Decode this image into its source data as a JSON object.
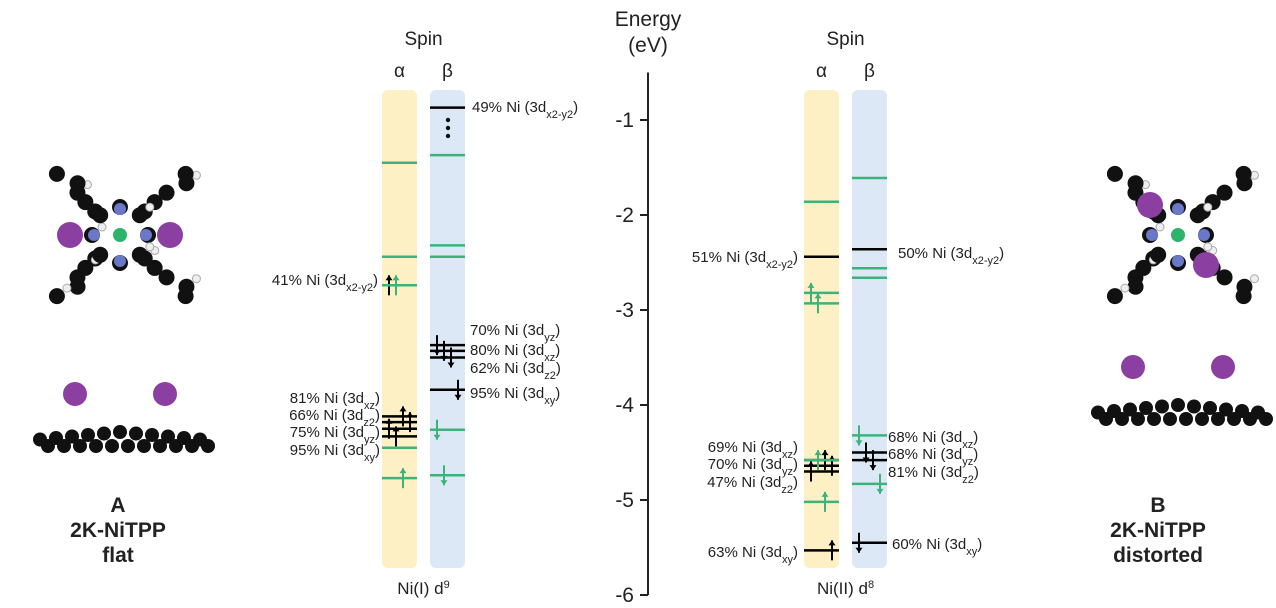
{
  "axis": {
    "title": [
      "Energy",
      "(eV)"
    ],
    "ylim": [
      -6,
      -0.5
    ],
    "yticks": [
      -1,
      -2,
      -3,
      -4,
      -5,
      -6
    ]
  },
  "panels": [
    {
      "header": "Spin",
      "alpha": "α",
      "beta": "β",
      "footer": {
        "text": "Ni(I) d",
        "sup": "9"
      },
      "columns": [
        {
          "color": "#fdf0c4",
          "levels": [
            {
              "energy": -1.45,
              "color": "#3cb37a",
              "e": "none"
            },
            {
              "energy": -2.44,
              "color": "#3cb37a",
              "e": "none"
            },
            {
              "energy": -2.74,
              "color": "#000000",
              "e": "up"
            },
            {
              "energy": -2.74,
              "color": "#3cb37a",
              "e": "up"
            },
            {
              "energy": -4.12,
              "color": "#000000",
              "e": "up"
            },
            {
              "energy": -4.18,
              "color": "#000000",
              "e": "up"
            },
            {
              "energy": -4.25,
              "color": "#000000",
              "e": "up"
            },
            {
              "energy": -4.33,
              "color": "#000000",
              "e": "up"
            },
            {
              "energy": -4.45,
              "color": "#3cb37a",
              "e": "none"
            },
            {
              "energy": -4.77,
              "color": "#3cb37a",
              "e": "up"
            }
          ]
        },
        {
          "color": "#dce8f5",
          "levels": [
            {
              "energy": -0.87,
              "color": "#000000",
              "e": "none"
            },
            {
              "energy": -1.37,
              "color": "#3cb37a",
              "e": "none"
            },
            {
              "energy": -2.32,
              "color": "#3cb37a",
              "e": "none"
            },
            {
              "energy": -2.44,
              "color": "#3cb37a",
              "e": "none"
            },
            {
              "energy": -3.37,
              "color": "#000000",
              "e": "down"
            },
            {
              "energy": -3.43,
              "color": "#000000",
              "e": "down"
            },
            {
              "energy": -3.5,
              "color": "#000000",
              "e": "down"
            },
            {
              "energy": -3.84,
              "color": "#000000",
              "e": "down"
            },
            {
              "energy": -4.26,
              "color": "#3cb37a",
              "e": "down"
            },
            {
              "energy": -4.74,
              "color": "#3cb37a",
              "e": "down"
            }
          ]
        }
      ],
      "labels": [
        {
          "prefix": "41% Ni (3d",
          "sub": "x2-y2",
          "suffix": ")"
        },
        {
          "prefix": "81% Ni (3d",
          "sub": "xz",
          "suffix": ")"
        },
        {
          "prefix": "66% Ni (3d",
          "sub": "z2",
          "suffix": ")"
        },
        {
          "prefix": "75% Ni (3d",
          "sub": "yz",
          "suffix": ")"
        },
        {
          "prefix": "95% Ni (3d",
          "sub": "xy",
          "suffix": ")"
        },
        {
          "prefix": "49% Ni (3d",
          "sub": "x2-y2",
          "suffix": ")"
        },
        {
          "prefix": "70% Ni (3d",
          "sub": "yz",
          "suffix": ")"
        },
        {
          "prefix": "80% Ni (3d",
          "sub": "xz",
          "suffix": ")"
        },
        {
          "prefix": "62% Ni (3d",
          "sub": "z2",
          "suffix": ")"
        },
        {
          "prefix": "95% Ni (3d",
          "sub": "xy",
          "suffix": ")"
        }
      ]
    },
    {
      "header": "Spin",
      "alpha": "α",
      "beta": "β",
      "footer": {
        "text": "Ni(II) d",
        "sup": "8"
      },
      "columns": [
        {
          "color": "#fdf0c4",
          "levels": [
            {
              "energy": -1.86,
              "color": "#3cb37a",
              "e": "none"
            },
            {
              "energy": -2.44,
              "color": "#000000",
              "e": "none"
            },
            {
              "energy": -2.82,
              "color": "#3cb37a",
              "e": "up"
            },
            {
              "energy": -2.93,
              "color": "#3cb37a",
              "e": "up"
            },
            {
              "energy": -4.58,
              "color": "#000000",
              "e": "up"
            },
            {
              "energy": -4.64,
              "color": "#000000",
              "e": "up"
            },
            {
              "energy": -4.7,
              "color": "#000000",
              "e": "up"
            },
            {
              "energy": -4.58,
              "color": "#3cb37a",
              "e": "up"
            },
            {
              "energy": -5.02,
              "color": "#3cb37a",
              "e": "up"
            },
            {
              "energy": -5.53,
              "color": "#000000",
              "e": "up"
            }
          ]
        },
        {
          "color": "#dce8f5",
          "levels": [
            {
              "energy": -1.61,
              "color": "#3cb37a",
              "e": "none"
            },
            {
              "energy": -2.36,
              "color": "#000000",
              "e": "none"
            },
            {
              "energy": -2.56,
              "color": "#3cb37a",
              "e": "none"
            },
            {
              "energy": -2.66,
              "color": "#3cb37a",
              "e": "none"
            },
            {
              "energy": -4.32,
              "color": "#3cb37a",
              "e": "down"
            },
            {
              "energy": -4.5,
              "color": "#000000",
              "e": "down"
            },
            {
              "energy": -4.58,
              "color": "#000000",
              "e": "down"
            },
            {
              "energy": -4.83,
              "color": "#3cb37a",
              "e": "down"
            },
            {
              "energy": -5.45,
              "color": "#000000",
              "e": "down"
            }
          ]
        }
      ],
      "labels": [
        {
          "prefix": "51% Ni (3d",
          "sub": "x2-y2",
          "suffix": ")"
        },
        {
          "prefix": "69% Ni (3d",
          "sub": "xz",
          "suffix": ")"
        },
        {
          "prefix": "70% Ni (3d",
          "sub": "yz",
          "suffix": ")"
        },
        {
          "prefix": "47% Ni (3d",
          "sub": "z2",
          "suffix": ")"
        },
        {
          "prefix": "63% Ni (3d",
          "sub": "xy",
          "suffix": ")"
        },
        {
          "prefix": "50% Ni (3d",
          "sub": "x2-y2",
          "suffix": ")"
        },
        {
          "prefix": "68% Ni (3d",
          "sub": "xz",
          "suffix": ")"
        },
        {
          "prefix": "68% Ni (3d",
          "sub": "yz",
          "suffix": ")"
        },
        {
          "prefix": "81% Ni (3d",
          "sub": "z2",
          "suffix": ")"
        },
        {
          "prefix": "60% Ni (3d",
          "sub": "xy",
          "suffix": ")"
        }
      ]
    }
  ],
  "molecules": [
    {
      "letter": "A",
      "name": "2K-NiTPP",
      "state": "flat"
    },
    {
      "letter": "B",
      "name": "2K-NiTPP",
      "state": "distorted"
    }
  ]
}
